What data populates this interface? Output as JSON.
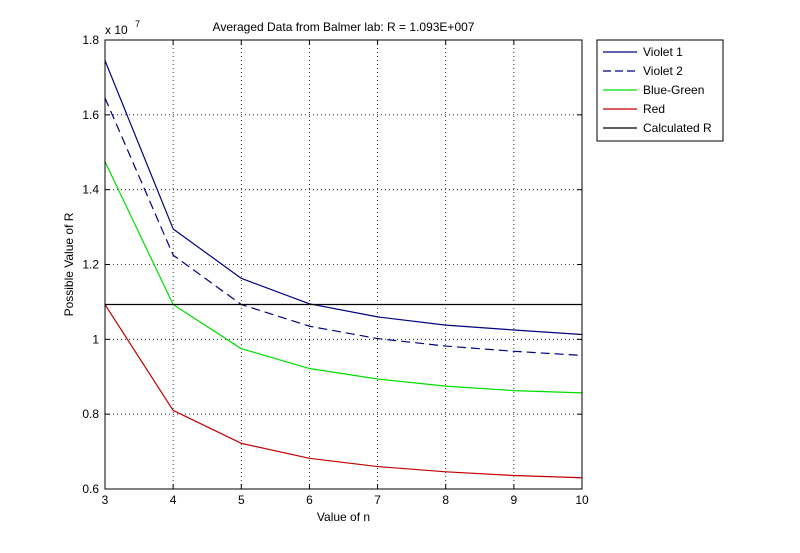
{
  "chart_data": {
    "type": "line",
    "title": "Averaged Data from Balmer lab: R = 1.093E+007",
    "xlabel": "Value of n",
    "ylabel": "Possible Value of R",
    "exponent_base": "x 10",
    "exponent_power": "7",
    "x": [
      3,
      4,
      5,
      6,
      7,
      8,
      9,
      10
    ],
    "xlim": [
      3,
      10
    ],
    "ylim": [
      0.6,
      1.8
    ],
    "xticks": [
      "3",
      "4",
      "5",
      "6",
      "7",
      "8",
      "9",
      "10"
    ],
    "yticks": [
      "0.6",
      "0.8",
      "1",
      "1.2",
      "1.4",
      "1.6",
      "1.8"
    ],
    "grid": true,
    "legend_position": "outside-top-right",
    "series": [
      {
        "name": "Violet 1",
        "color": "#000080",
        "style": "solid",
        "values": [
          1.745,
          1.295,
          1.163,
          1.095,
          1.06,
          1.038,
          1.025,
          1.013
        ]
      },
      {
        "name": "Violet 2",
        "color": "#000080",
        "style": "dashed",
        "values": [
          1.645,
          1.225,
          1.093,
          1.035,
          1.002,
          0.982,
          0.968,
          0.957
        ]
      },
      {
        "name": "Blue-Green",
        "color": "#00dd00",
        "style": "solid",
        "values": [
          1.475,
          1.093,
          0.975,
          0.922,
          0.894,
          0.875,
          0.863,
          0.857
        ]
      },
      {
        "name": "Red",
        "color": "#c00000",
        "style": "solid",
        "values": [
          1.093,
          0.81,
          0.722,
          0.682,
          0.66,
          0.646,
          0.636,
          0.63
        ]
      },
      {
        "name": "Calculated R",
        "color": "#000000",
        "style": "solid",
        "values": [
          1.093,
          1.093,
          1.093,
          1.093,
          1.093,
          1.093,
          1.093,
          1.093
        ]
      }
    ]
  }
}
